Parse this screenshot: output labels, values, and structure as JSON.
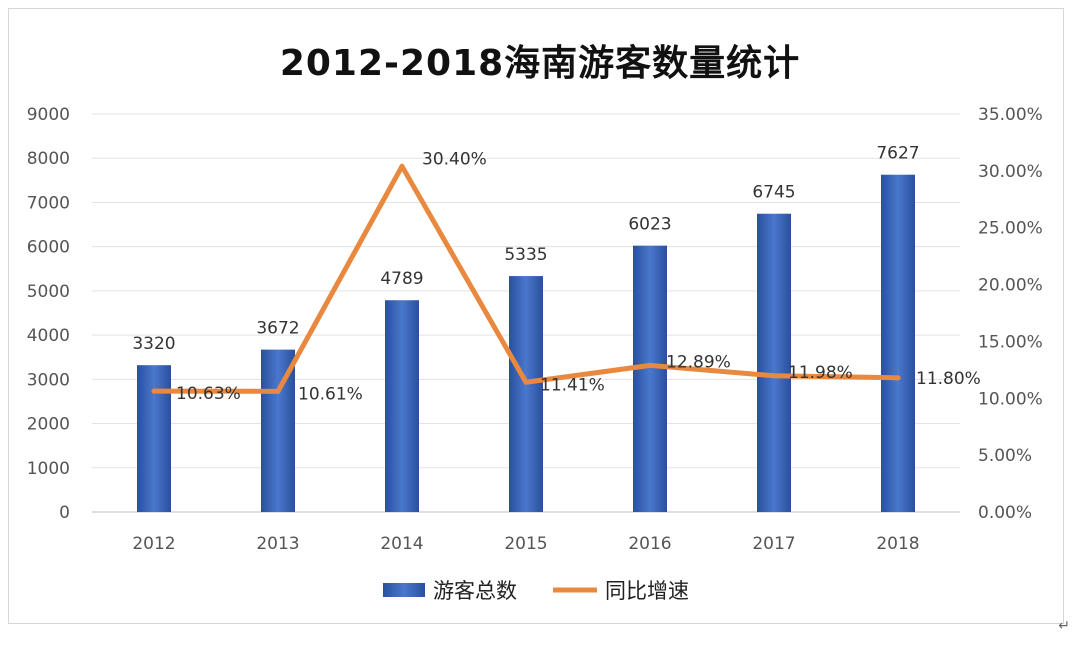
{
  "chart_data": {
    "type": "bar",
    "title": "2012-2018海南游客数量统计",
    "categories": [
      "2012",
      "2013",
      "2014",
      "2015",
      "2016",
      "2017",
      "2018"
    ],
    "series": [
      {
        "name": "游客总数",
        "type": "bar",
        "axis": "left",
        "values": [
          3320,
          3672,
          4789,
          5335,
          6023,
          6745,
          7627
        ],
        "labels": [
          "3320",
          "3672",
          "4789",
          "5335",
          "6023",
          "6745",
          "7627"
        ],
        "color": "#3a64b8"
      },
      {
        "name": "同比增速",
        "type": "line",
        "axis": "right",
        "values": [
          10.63,
          10.61,
          30.4,
          11.41,
          12.89,
          11.98,
          11.8
        ],
        "labels": [
          "10.63%",
          "10.61%",
          "30.40%",
          "11.41%",
          "12.89%",
          "11.98%",
          "11.80%"
        ],
        "color": "#e9893f"
      }
    ],
    "y_left": {
      "range": [
        0,
        9000
      ],
      "ticks": [
        "0",
        "1000",
        "2000",
        "3000",
        "4000",
        "5000",
        "6000",
        "7000",
        "8000",
        "9000"
      ]
    },
    "y_right": {
      "range": [
        0,
        35
      ],
      "ticks": [
        "0.00%",
        "5.00%",
        "10.00%",
        "15.00%",
        "20.00%",
        "25.00%",
        "30.00%",
        "35.00%"
      ]
    },
    "grid": true,
    "legend": "bottom"
  },
  "corner_mark": "↵"
}
